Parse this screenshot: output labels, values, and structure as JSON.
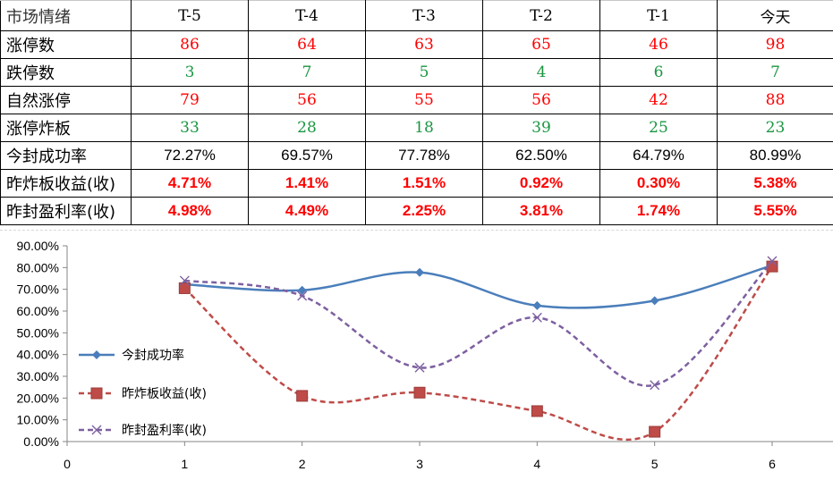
{
  "table": {
    "header": [
      "市场情绪",
      "T-5",
      "T-4",
      "T-3",
      "T-2",
      "T-1",
      "今天"
    ],
    "rows": [
      {
        "label": "涨停数",
        "values": [
          "86",
          "64",
          "63",
          "65",
          "46",
          "98"
        ],
        "style": "red"
      },
      {
        "label": "跌停数",
        "values": [
          "3",
          "7",
          "5",
          "4",
          "6",
          "7"
        ],
        "style": "green"
      },
      {
        "label": "自然涨停",
        "values": [
          "79",
          "56",
          "55",
          "56",
          "42",
          "88"
        ],
        "style": "red"
      },
      {
        "label": "涨停炸板",
        "values": [
          "33",
          "28",
          "18",
          "39",
          "25",
          "23"
        ],
        "style": "green"
      },
      {
        "label": "今封成功率",
        "values": [
          "72.27%",
          "69.57%",
          "77.78%",
          "62.50%",
          "64.79%",
          "80.99%"
        ],
        "style": "pct"
      },
      {
        "label": "昨炸板收益(收)",
        "values": [
          "4.71%",
          "1.41%",
          "1.51%",
          "0.92%",
          "0.30%",
          "5.38%"
        ],
        "style": "pctred"
      },
      {
        "label": "昨封盈利率(收)",
        "values": [
          "4.98%",
          "4.49%",
          "2.25%",
          "3.81%",
          "1.74%",
          "5.55%"
        ],
        "style": "pctred"
      }
    ]
  },
  "colors": {
    "red_value": "#ff0000",
    "green_value": "#1a9641",
    "series1": "#4a7ebb",
    "series2": "#be4b48",
    "series3": "#7d60a0"
  },
  "chart_data": {
    "type": "line",
    "x": [
      1,
      2,
      3,
      4,
      5,
      6
    ],
    "xlim": [
      0,
      6
    ],
    "x_ticks": [
      "0",
      "1",
      "2",
      "3",
      "4",
      "5",
      "6"
    ],
    "ylim": [
      0,
      90
    ],
    "y_ticks": [
      "0.00%",
      "10.00%",
      "20.00%",
      "30.00%",
      "40.00%",
      "50.00%",
      "60.00%",
      "70.00%",
      "80.00%",
      "90.00%"
    ],
    "smooth": true,
    "legend_position": "left",
    "series": [
      {
        "name": "今封成功率",
        "values": [
          72.27,
          69.57,
          77.78,
          62.5,
          64.79,
          80.99
        ],
        "marker": "diamond",
        "dash": "solid",
        "color": "#4a7ebb"
      },
      {
        "name": "昨炸板收益(收)",
        "values": [
          70.5,
          21.0,
          22.5,
          14.0,
          4.5,
          80.5
        ],
        "marker": "square",
        "dash": "dashed",
        "color": "#be4b48"
      },
      {
        "name": "昨封盈利率(收)",
        "values": [
          74.0,
          67.0,
          34.0,
          57.0,
          26.0,
          83.0
        ],
        "marker": "x",
        "dash": "dashed",
        "color": "#7d60a0"
      }
    ]
  }
}
